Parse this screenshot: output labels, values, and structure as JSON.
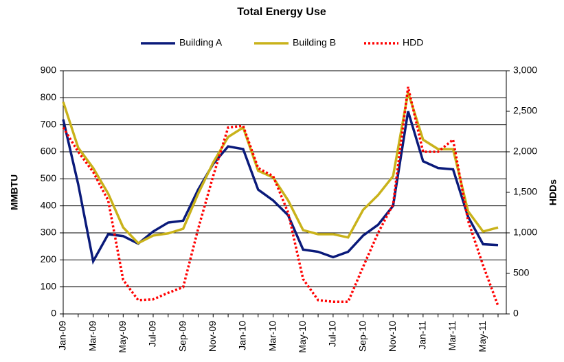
{
  "chart_data": {
    "type": "line",
    "title": "Total Energy Use",
    "y_label": "MMBTU",
    "y2_label": "HDDs",
    "categories": [
      "Jan-09",
      null,
      "Mar-09",
      null,
      "May-09",
      null,
      "Jul-09",
      null,
      "Sep-09",
      null,
      "Nov-09",
      null,
      "Jan-10",
      null,
      "Mar-10",
      null,
      "May-10",
      null,
      "Jul-10",
      null,
      "Sep-10",
      null,
      "Nov-10",
      null,
      "Jan-11",
      null,
      "Mar-11",
      null,
      "May-11",
      null
    ],
    "series": [
      {
        "name": "Building A",
        "color": "#0a1a7a",
        "dash": "solid",
        "values": [
          720,
          480,
          195,
          295,
          288,
          260,
          305,
          338,
          345,
          460,
          555,
          620,
          610,
          460,
          420,
          365,
          238,
          230,
          210,
          230,
          290,
          330,
          400,
          750,
          565,
          540,
          535,
          360,
          258,
          255
        ]
      },
      {
        "name": "Building B",
        "color": "#c9b21a",
        "dash": "solid",
        "values": [
          785,
          615,
          540,
          445,
          320,
          262,
          290,
          298,
          315,
          445,
          560,
          655,
          690,
          530,
          505,
          420,
          310,
          295,
          295,
          283,
          385,
          440,
          510,
          820,
          645,
          610,
          610,
          380,
          305,
          320
        ]
      },
      {
        "name": "HDD",
        "color": "#ff0000",
        "dash": "dotted",
        "axis": "y2",
        "values": [
          2300,
          2000,
          1750,
          1400,
          420,
          170,
          180,
          260,
          330,
          1050,
          1700,
          2300,
          2320,
          1800,
          1700,
          1250,
          430,
          170,
          150,
          150,
          580,
          1000,
          1350,
          2800,
          2000,
          2000,
          2150,
          1150,
          600,
          100
        ]
      }
    ],
    "ylim": [
      0,
      900
    ],
    "yticks": [
      0,
      100,
      200,
      300,
      400,
      500,
      600,
      700,
      800,
      900
    ],
    "y2lim": [
      0,
      3000
    ],
    "y2ticks": [
      0,
      {
        "value": 500,
        "label": "500"
      },
      {
        "value": 1000,
        "label": "1,000"
      },
      {
        "value": 1500,
        "label": "1,500"
      },
      {
        "value": 2000,
        "label": "2,000"
      },
      {
        "value": 2500,
        "label": "2,500"
      },
      {
        "value": 3000,
        "label": "3,000"
      }
    ],
    "grid": true,
    "legend": "top"
  }
}
